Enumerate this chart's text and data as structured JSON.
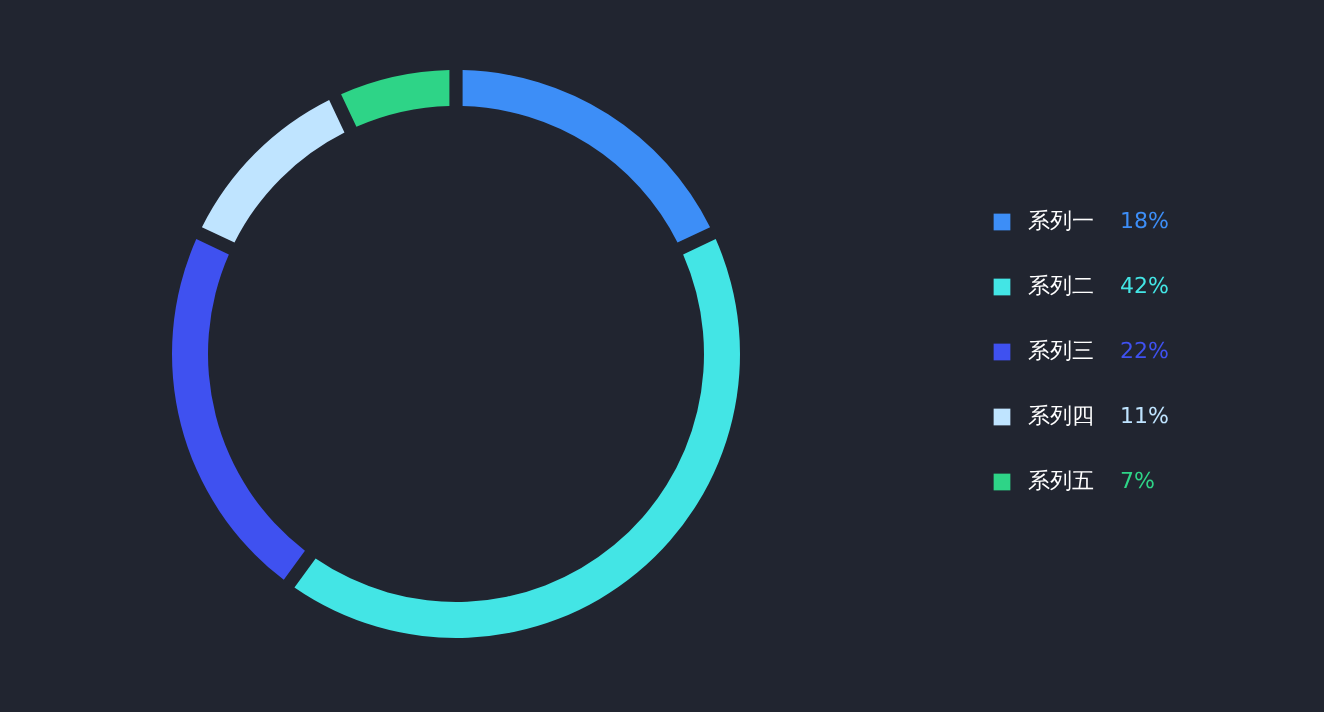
{
  "chart_data": {
    "type": "donut",
    "categories": [
      "系列一",
      "系列二",
      "系列三",
      "系列四",
      "系列五"
    ],
    "values": [
      18,
      42,
      22,
      11,
      7
    ],
    "colors": [
      "#3d8ef7",
      "#43e5e5",
      "#3f51f0",
      "#bfe4ff",
      "#2ed487"
    ],
    "value_labels": [
      "18%",
      "42%",
      "22%",
      "11%",
      "7%"
    ],
    "legend": "right"
  }
}
